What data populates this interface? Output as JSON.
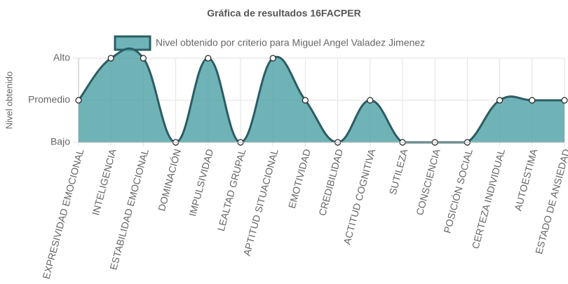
{
  "chart_data": {
    "type": "line",
    "title": "Gráfica de resultados 16FACPER",
    "y_label": "Nivel obtenido",
    "categories": [
      "EXPRESIVIDAD EMOCIONAL",
      "INTELIGENCIA",
      "ESTABILIDAD EMOCIONAL",
      "DOMINACIÓN",
      "IMPULSIVIDAD",
      "LEALTAD GRUPAL",
      "APTITUD SITUACIONAL",
      "EMOTIVIDAD",
      "CREDIBILIDAD",
      "ACTITUD COGNITIVA",
      "SUTILEZA",
      "CONSCIENCIA",
      "POSICIÓN SOCIAL",
      "CERTEZA INDIVIDUAL",
      "AUTOESTIMA",
      "ESTADO DE ANSIEDAD"
    ],
    "series": [
      {
        "name": "Nivel obtenido por criterio para Miguel Angel Valadez Jimenez",
        "color": "#2b5d63",
        "fill": "rgba(75,160,165,0.8)",
        "values": [
          2,
          3,
          3,
          1,
          3,
          1,
          3,
          2,
          1,
          2,
          1,
          1,
          1,
          2,
          2,
          2
        ]
      }
    ],
    "ylim": [
      1,
      3
    ],
    "yticks": [
      {
        "value": 1,
        "label": "Bajo"
      },
      {
        "value": 2,
        "label": "Promedio"
      },
      {
        "value": 3,
        "label": "Alto"
      }
    ],
    "grid": true,
    "legend": "top"
  }
}
